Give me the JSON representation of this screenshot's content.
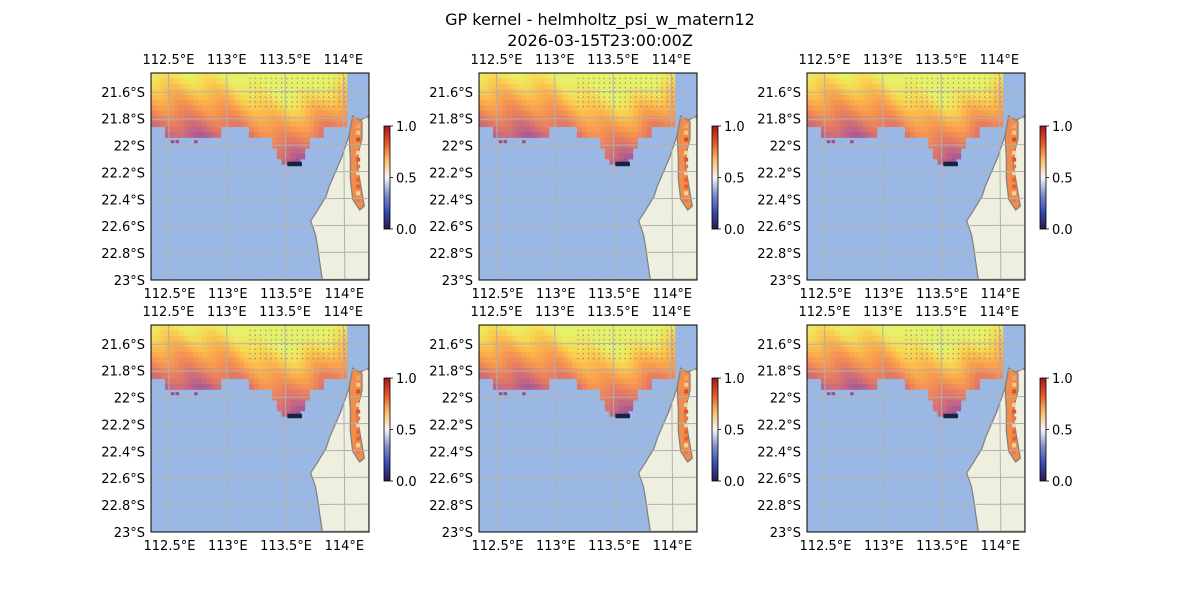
{
  "figure": {
    "title_line1": "GP kernel - helmholtz_psi_w_matern12",
    "title_line2": "2026-03-15T23:00:00Z"
  },
  "colors": {
    "ocean": "#9ab8e3",
    "land": "#efefdf",
    "coast": "#7f7f7f",
    "grid": "#b0b0b0",
    "colormap": [
      "#2a1a4f",
      "#3a4bb0",
      "#7d8ed0",
      "#f6f6f6",
      "#f7c068",
      "#e8562d",
      "#a11a16"
    ]
  },
  "chart_data": [
    {
      "type": "heatmap",
      "panel": "top-left",
      "xticks": [
        "112.5°E",
        "113°E",
        "113.5°E",
        "114°E"
      ],
      "yticks": [
        "21.6°S",
        "21.8°S",
        "22°S",
        "22.2°S",
        "22.4°S",
        "22.6°S",
        "22.8°S",
        "23°S"
      ],
      "colorbar": {
        "ticks": [
          "0.0",
          "0.5",
          "1.0"
        ],
        "range": [
          0,
          1
        ]
      },
      "grid": true
    },
    {
      "type": "heatmap",
      "panel": "top-middle",
      "xticks": [
        "112.5°E",
        "113°E",
        "113.5°E",
        "114°E"
      ],
      "yticks": [
        "21.6°S",
        "21.8°S",
        "22°S",
        "22.2°S",
        "22.4°S",
        "22.6°S",
        "22.8°S",
        "23°S"
      ],
      "colorbar": {
        "ticks": [
          "0.0",
          "0.5",
          "1.0"
        ],
        "range": [
          0,
          1
        ]
      },
      "grid": true
    },
    {
      "type": "heatmap",
      "panel": "top-right",
      "xticks": [
        "112.5°E",
        "113°E",
        "113.5°E",
        "114°E"
      ],
      "yticks": [
        "21.6°S",
        "21.8°S",
        "22°S",
        "22.2°S",
        "22.4°S",
        "22.6°S",
        "22.8°S",
        "23°S"
      ],
      "colorbar": {
        "ticks": [
          "0.0",
          "0.5",
          "1.0"
        ],
        "range": [
          0,
          1
        ]
      },
      "grid": true
    },
    {
      "type": "heatmap",
      "panel": "bottom-left",
      "xticks": [
        "112.5°E",
        "113°E",
        "113.5°E",
        "114°E"
      ],
      "yticks": [
        "21.6°S",
        "21.8°S",
        "22°S",
        "22.2°S",
        "22.4°S",
        "22.6°S",
        "22.8°S",
        "23°S"
      ],
      "colorbar": {
        "ticks": [
          "0.0",
          "0.5",
          "1.0"
        ],
        "range": [
          0,
          1
        ]
      },
      "grid": true
    },
    {
      "type": "heatmap",
      "panel": "bottom-middle",
      "xticks": [
        "112.5°E",
        "113°E",
        "113.5°E",
        "114°E"
      ],
      "yticks": [
        "21.6°S",
        "21.8°S",
        "22°S",
        "22.2°S",
        "22.4°S",
        "22.6°S",
        "22.8°S",
        "23°S"
      ],
      "colorbar": {
        "ticks": [
          "0.0",
          "0.5",
          "1.0"
        ],
        "range": [
          0,
          1
        ]
      },
      "grid": true
    },
    {
      "type": "heatmap",
      "panel": "bottom-right",
      "xticks": [
        "112.5°E",
        "113°E",
        "113.5°E",
        "114°E"
      ],
      "yticks": [
        "21.6°S",
        "21.8°S",
        "22°S",
        "22.2°S",
        "22.4°S",
        "22.6°S",
        "22.8°S",
        "23°S"
      ],
      "colorbar": {
        "ticks": [
          "0.0",
          "0.5",
          "1.0"
        ],
        "range": [
          0,
          1
        ]
      },
      "grid": true
    }
  ]
}
